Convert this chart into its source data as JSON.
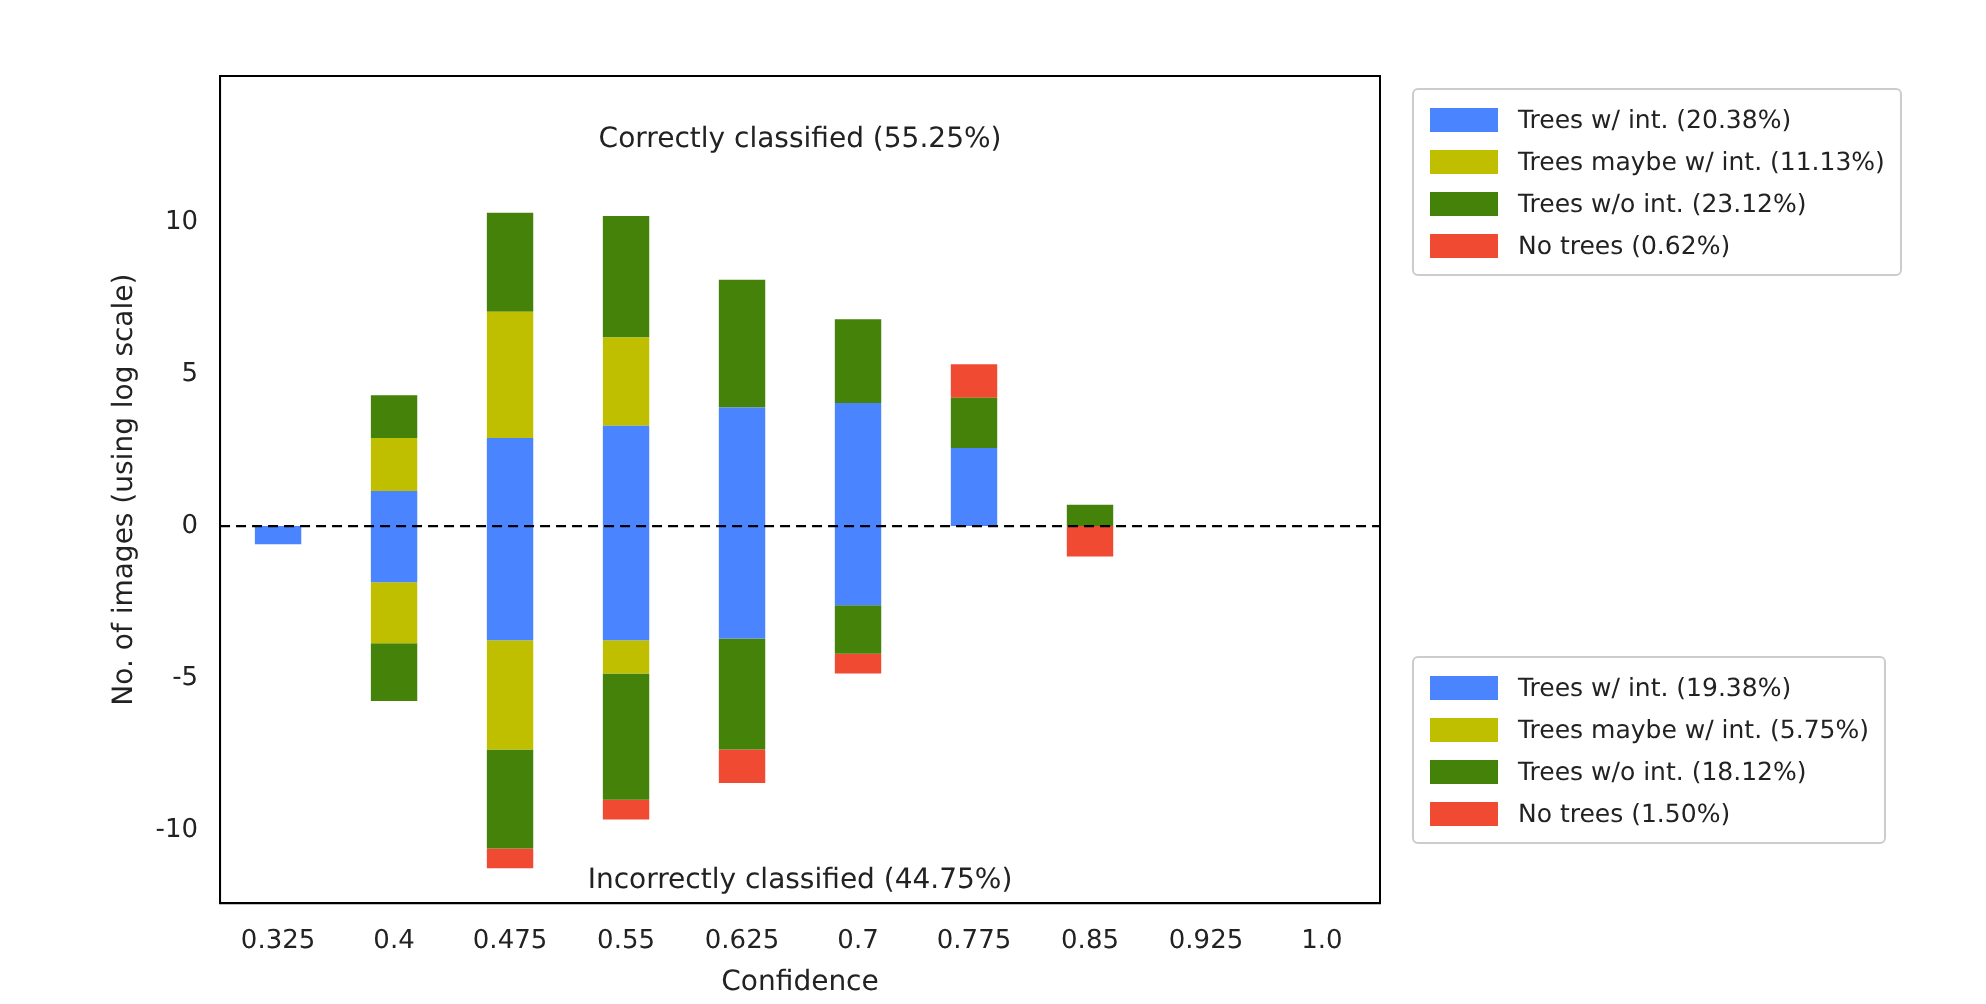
{
  "chart_data": {
    "type": "bar",
    "stacked": true,
    "xlabel": "Confidence",
    "ylabel": "No. of images (using log scale)",
    "categories": [
      "0.325",
      "0.4",
      "0.475",
      "0.55",
      "0.625",
      "0.7",
      "0.775",
      "0.85",
      "0.925",
      "1.0"
    ],
    "ylim": [
      -12.4,
      14.8
    ],
    "yticks": [
      -10,
      -5,
      0,
      5,
      10
    ],
    "grid": false,
    "legend": "right",
    "series": [
      {
        "name": "Trees w/ int. (20.38%)",
        "color": "#4b84ff",
        "values": [
          null,
          1.15,
          2.9,
          3.3,
          3.9,
          4.05,
          2.57,
          null,
          null,
          null
        ]
      },
      {
        "name": "Trees maybe w/ int. (11.13%)",
        "color": "#bfbf00",
        "values": [
          null,
          1.75,
          4.15,
          2.9,
          null,
          null,
          null,
          null,
          null,
          null
        ]
      },
      {
        "name": "Trees w/o int. (23.12%)",
        "color": "#448209",
        "values": [
          null,
          1.4,
          3.25,
          4.0,
          4.2,
          2.75,
          1.65,
          0.7,
          null,
          null
        ]
      },
      {
        "name": "No trees (0.62%)",
        "color": "#f04a32",
        "values": [
          null,
          null,
          null,
          null,
          null,
          null,
          1.1,
          null,
          null,
          null
        ]
      },
      {
        "name": "Trees w/ int. (19.38%)",
        "color": "#4b84ff",
        "values": [
          -0.6,
          -1.85,
          -3.75,
          -3.75,
          -3.7,
          -2.6,
          null,
          null,
          null,
          null
        ]
      },
      {
        "name": "Trees maybe w/ int. (5.75%)",
        "color": "#bfbf00",
        "values": [
          null,
          -2.0,
          -3.6,
          -1.1,
          null,
          null,
          null,
          null,
          null,
          null
        ]
      },
      {
        "name": "Trees w/o int. (18.12%)",
        "color": "#448209",
        "values": [
          null,
          -1.9,
          -3.25,
          -4.15,
          -3.65,
          -1.6,
          null,
          null,
          null,
          null
        ]
      },
      {
        "name": "No trees (1.50%)",
        "color": "#f04a32",
        "values": [
          null,
          null,
          -0.65,
          -0.65,
          -1.1,
          -0.65,
          null,
          -1.0,
          null,
          null
        ]
      }
    ],
    "ref_lines": [
      {
        "axis": "y",
        "value": 0,
        "color": "#000000",
        "line_style": "dashed"
      }
    ],
    "annotations": [
      "Correctly classified (55.25%)",
      "Incorrectly classified (44.75%)"
    ]
  }
}
